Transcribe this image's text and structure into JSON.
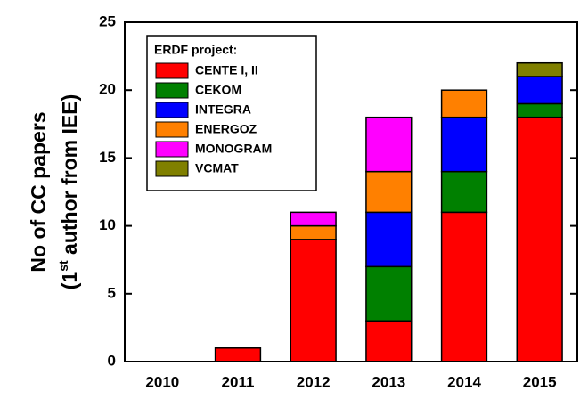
{
  "chart_data": {
    "type": "stacked_bar",
    "y_label": {
      "line1": "No of CC papers",
      "line2": [
        "(1",
        "st",
        " author from IEE)"
      ]
    },
    "legend_title": "ERDF project:",
    "categories": [
      "2010",
      "2011",
      "2012",
      "2013",
      "2014",
      "2015"
    ],
    "series": [
      {
        "name": "CENTE I, II",
        "color": "#ff0000",
        "values": [
          0,
          1,
          9,
          3,
          11,
          18
        ]
      },
      {
        "name": "CEKOM",
        "color": "#008000",
        "values": [
          0,
          0,
          0,
          4,
          3,
          1
        ]
      },
      {
        "name": "INTEGRA",
        "color": "#0000ff",
        "values": [
          0,
          0,
          0,
          4,
          4,
          2
        ]
      },
      {
        "name": "ENERGOZ",
        "color": "#ff8000",
        "values": [
          0,
          0,
          1,
          3,
          2,
          0
        ]
      },
      {
        "name": "MONOGRAM",
        "color": "#ff00ff",
        "values": [
          0,
          0,
          1,
          4,
          0,
          0
        ]
      },
      {
        "name": "VCMAT",
        "color": "#808000",
        "values": [
          0,
          0,
          0,
          0,
          0,
          1
        ]
      }
    ],
    "ylim": [
      0,
      25
    ],
    "yticks": [
      0,
      5,
      10,
      15,
      20,
      25
    ],
    "grid": false,
    "legend": "upper left"
  }
}
